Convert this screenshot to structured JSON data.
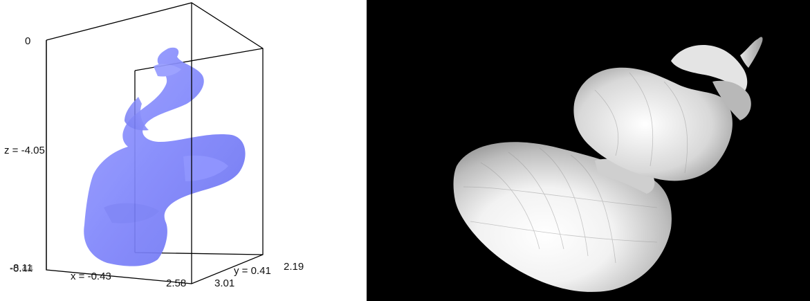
{
  "left_view": {
    "background": "#ffffff",
    "surface_color": "#7f85fb",
    "box_color": "#000000",
    "labels": {
      "z_top": "0",
      "z_mid": "z = -4.05",
      "z_bottom": "-8.11",
      "x_min": "-0.44",
      "x_axis": "x = -0.43",
      "x_max": "2.58",
      "y_min": "3.01",
      "y_axis": "y = 0.41",
      "y_max": "2.19"
    }
  },
  "right_view": {
    "background": "#000000",
    "surface_color": "#ffffff",
    "shading": "flat grayscale"
  }
}
